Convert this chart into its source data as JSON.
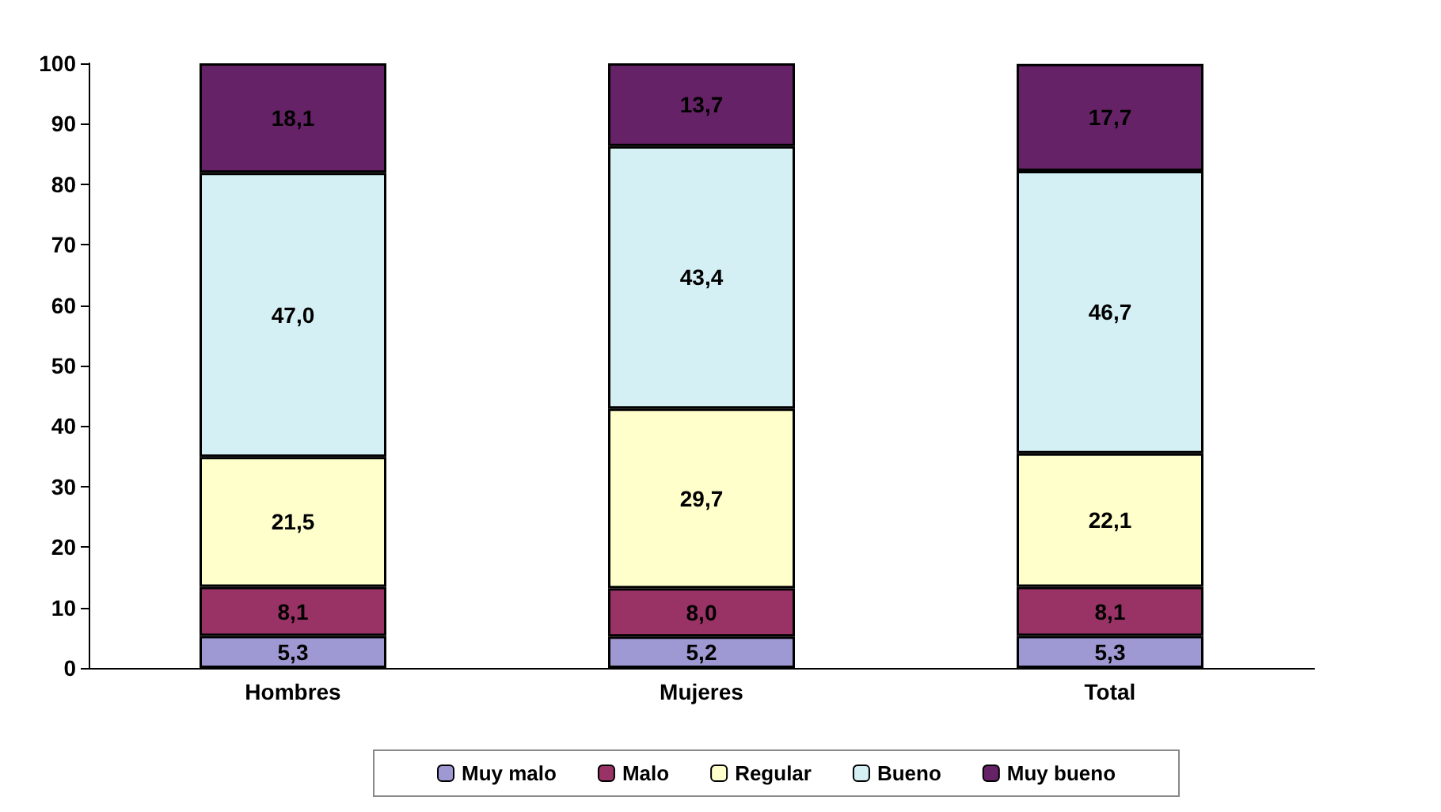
{
  "chart_data": {
    "type": "bar",
    "stacked": true,
    "categories": [
      "Hombres",
      "Mujeres",
      "Total"
    ],
    "series": [
      {
        "name": "Muy malo",
        "color": "#9f99d3",
        "values": [
          5.3,
          5.2,
          5.3
        ],
        "value_labels": [
          "5,3",
          "5,2",
          "5,3"
        ]
      },
      {
        "name": "Malo",
        "color": "#993366",
        "values": [
          8.1,
          8.0,
          8.1
        ],
        "value_labels": [
          "8,1",
          "8,0",
          "8,1"
        ]
      },
      {
        "name": "Regular",
        "color": "#ffffcc",
        "values": [
          21.5,
          29.7,
          22.1
        ],
        "value_labels": [
          "21,5",
          "29,7",
          "22,1"
        ]
      },
      {
        "name": "Bueno",
        "color": "#d4f0f4",
        "values": [
          47.0,
          43.4,
          46.7
        ],
        "value_labels": [
          "47,0",
          "43,4",
          "46,7"
        ]
      },
      {
        "name": "Muy bueno",
        "color": "#662266",
        "values": [
          18.1,
          13.7,
          17.7
        ],
        "value_labels": [
          "18,1",
          "13,7",
          "17,7"
        ]
      }
    ],
    "ylim": [
      0,
      100
    ],
    "yticks": [
      0,
      10,
      20,
      30,
      40,
      50,
      60,
      70,
      80,
      90,
      100
    ],
    "grid": false,
    "legend": "bottom"
  }
}
